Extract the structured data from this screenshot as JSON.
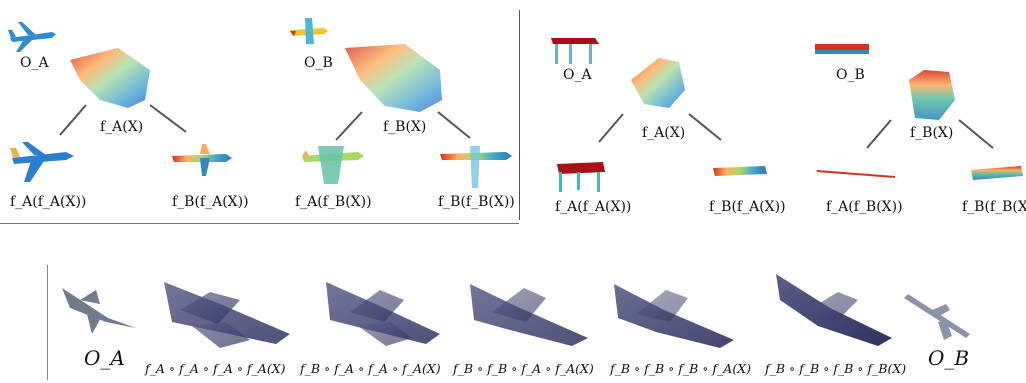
{
  "top_left": {
    "o_a": "O_A",
    "o_b": "O_B",
    "f_a_x": "f_A(X)",
    "f_b_x": "f_B(X)",
    "f_a_f_a": "f_A(f_A(X))",
    "f_b_f_a": "f_B(f_A(X))",
    "f_a_f_b": "f_A(f_B(X))",
    "f_b_f_b": "f_B(f_B(X))"
  },
  "top_right": {
    "o_a": "O_A",
    "o_b": "O_B",
    "f_a_x": "f_A(X)",
    "f_b_x": "f_B(X)",
    "f_a_f_a": "f_A(f_A(X))",
    "f_b_f_a": "f_B(f_A(X))",
    "f_a_f_b": "f_A(f_B(X))",
    "f_b_f_b": "f_B(f_B(X))"
  },
  "bottom": {
    "o_a": "O_A",
    "o_b": "O_B",
    "seq1": "f_A ∘ f_A ∘ f_A ∘ f_A(X)",
    "seq2": "f_B ∘ f_A ∘ f_A ∘ f_A(X)",
    "seq3": "f_B ∘ f_B ∘ f_A ∘ f_A(X)",
    "seq4": "f_B ∘ f_B ∘ f_B ∘ f_A(X)",
    "seq5": "f_B ∘ f_B ∘ f_B ∘ f_B(X)"
  }
}
